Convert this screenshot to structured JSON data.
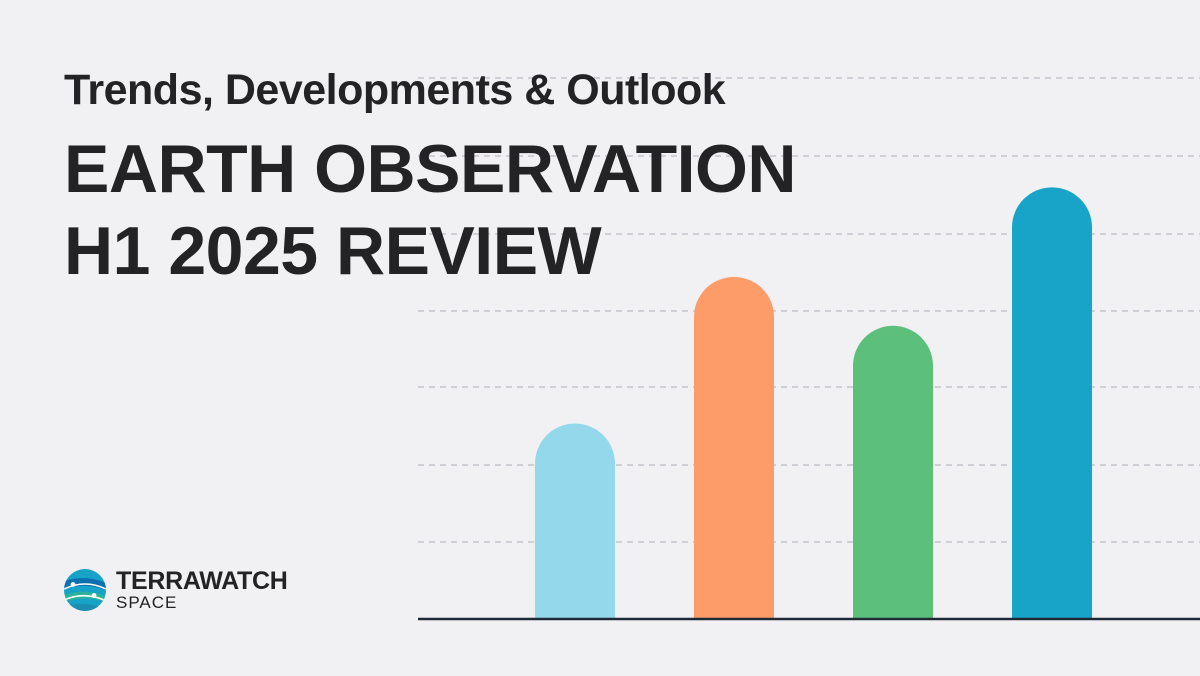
{
  "header": {
    "subtitle": "Trends, Developments & Outlook",
    "title_line1": "EARTH OBSERVATION",
    "title_line2": "H1 2025 REVIEW"
  },
  "logo": {
    "brand": "TERRAWATCH",
    "sub": "SPACE",
    "icon": "globe-orbit-icon",
    "colors": [
      "#17a2c8",
      "#2bb39a",
      "#0d6fb0"
    ]
  },
  "chart_data": {
    "type": "bar",
    "categories": [
      "",
      "",
      "",
      ""
    ],
    "values": [
      2.4,
      4.2,
      3.6,
      5.3
    ],
    "colors": [
      "#93d9eb",
      "#fd9b69",
      "#5cc07c",
      "#17a4c8"
    ],
    "ylim": [
      0,
      7.6
    ],
    "grid": true,
    "grid_style": "dashed",
    "title": "",
    "xlabel": "",
    "ylabel": ""
  }
}
